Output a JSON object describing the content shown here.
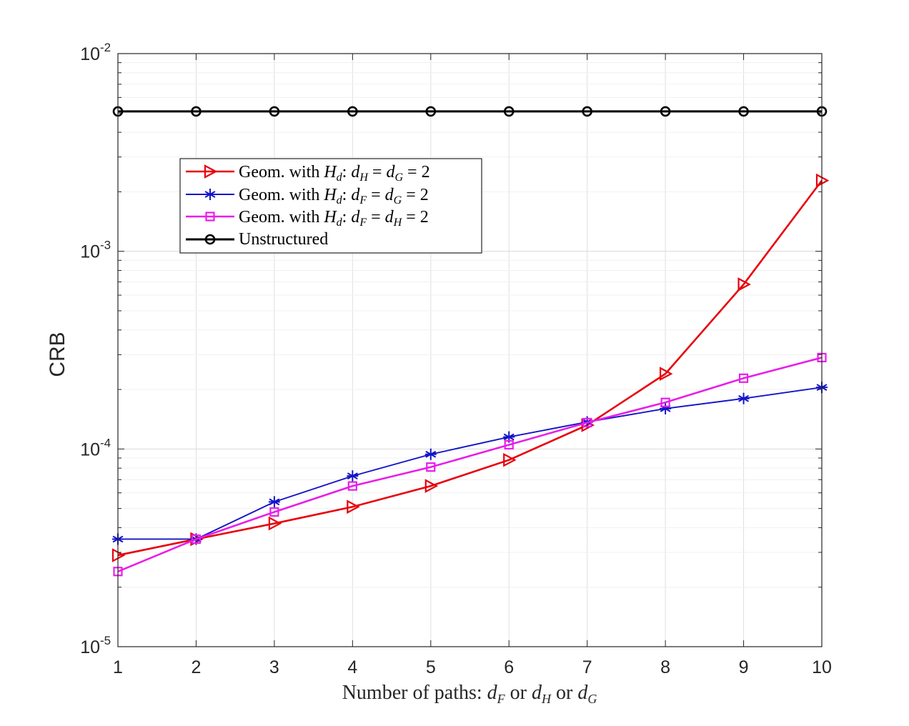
{
  "chart_data": {
    "type": "line",
    "title": "",
    "xlabel": "Number of paths: d_F or d_H or d_G",
    "ylabel": "CRB",
    "x": [
      1,
      2,
      3,
      4,
      5,
      6,
      7,
      8,
      9,
      10
    ],
    "xlim": [
      1,
      10
    ],
    "ylim": [
      1e-05,
      0.01
    ],
    "yscale": "log",
    "grid": true,
    "legend_position": "upper-left",
    "x_ticks": [
      "1",
      "2",
      "3",
      "4",
      "5",
      "6",
      "7",
      "8",
      "9",
      "10"
    ],
    "y_ticks": [
      {
        "base": "10",
        "exp": "-5"
      },
      {
        "base": "10",
        "exp": "-4"
      },
      {
        "base": "10",
        "exp": "-3"
      },
      {
        "base": "10",
        "exp": "-2"
      }
    ],
    "series": [
      {
        "name": "Geom. with H_d: d_H = d_G = 2",
        "color": "#e8000b",
        "marker": "triangle-right",
        "values": [
          2.9e-05,
          3.5e-05,
          4.2e-05,
          5.1e-05,
          6.5e-05,
          8.8e-05,
          0.000132,
          0.00024,
          0.00068,
          0.00228
        ]
      },
      {
        "name": "Geom. with H_d: d_F = d_G = 2",
        "color": "#1414c8",
        "marker": "asterisk",
        "values": [
          3.5e-05,
          3.5e-05,
          5.4e-05,
          7.3e-05,
          9.4e-05,
          0.000115,
          0.000137,
          0.00016,
          0.00018,
          0.000205
        ]
      },
      {
        "name": "Geom. with H_d: d_F = d_H = 2",
        "color": "#e81ee8",
        "marker": "square",
        "values": [
          2.4e-05,
          3.5e-05,
          4.8e-05,
          6.5e-05,
          8.1e-05,
          0.000105,
          0.000136,
          0.000172,
          0.000228,
          0.00029
        ]
      },
      {
        "name": "Unstructured",
        "color": "#000000",
        "marker": "circle",
        "values": [
          0.0051,
          0.0051,
          0.0051,
          0.0051,
          0.0051,
          0.0051,
          0.0051,
          0.0051,
          0.0051,
          0.0051
        ]
      }
    ],
    "xlabel_parts": {
      "prefix": "Number of paths: ",
      "var1": "d",
      "sub1": "F",
      "or1": " or ",
      "var2": "d",
      "sub2": "H",
      "or2": " or ",
      "var3": "d",
      "sub3": "G"
    },
    "legend_entries": [
      {
        "pre": "Geom. with ",
        "H": "H",
        "Hsub": "d",
        "colon": ":",
        "a": "d",
        "asub": "H",
        "eq1": "=",
        "b": "d",
        "bsub": "G",
        "eq2": "=",
        "val": "2"
      },
      {
        "pre": "Geom. with ",
        "H": "H",
        "Hsub": "d",
        "colon": ":",
        "a": "d",
        "asub": "F",
        "eq1": "=",
        "b": "d",
        "bsub": "G",
        "eq2": "=",
        "val": "2"
      },
      {
        "pre": "Geom. with ",
        "H": "H",
        "Hsub": "d",
        "colon": ":",
        "a": "d",
        "asub": "F",
        "eq1": "=",
        "b": "d",
        "bsub": "H",
        "eq2": "=",
        "val": "2"
      },
      {
        "pre": "Unstructured"
      }
    ]
  }
}
